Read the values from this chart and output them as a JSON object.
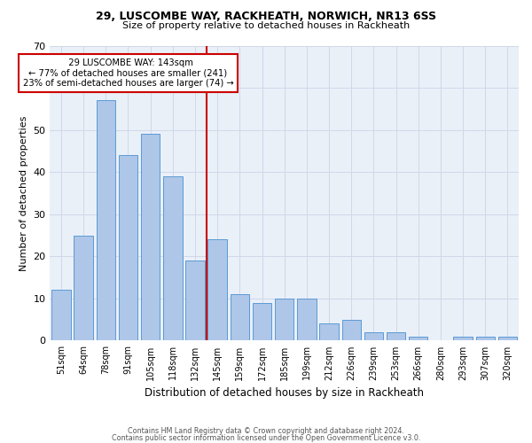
{
  "title": "29, LUSCOMBE WAY, RACKHEATH, NORWICH, NR13 6SS",
  "subtitle": "Size of property relative to detached houses in Rackheath",
  "xlabel": "Distribution of detached houses by size in Rackheath",
  "ylabel": "Number of detached properties",
  "categories": [
    "51sqm",
    "64sqm",
    "78sqm",
    "91sqm",
    "105sqm",
    "118sqm",
    "132sqm",
    "145sqm",
    "159sqm",
    "172sqm",
    "185sqm",
    "199sqm",
    "212sqm",
    "226sqm",
    "239sqm",
    "253sqm",
    "266sqm",
    "280sqm",
    "293sqm",
    "307sqm",
    "320sqm"
  ],
  "values": [
    12,
    25,
    57,
    44,
    49,
    39,
    19,
    24,
    11,
    9,
    10,
    10,
    4,
    5,
    2,
    2,
    1,
    0,
    1,
    1,
    1
  ],
  "bar_color": "#aec6e8",
  "bar_edge_color": "#5b9bd5",
  "annotation_line1": "  29 LUSCOMBE WAY: 143sqm",
  "annotation_line2": "← 77% of detached houses are smaller (241)",
  "annotation_line3": "23% of semi-detached houses are larger (74) →",
  "annotation_box_color": "#cc0000",
  "vline_color": "#cc0000",
  "ylim": [
    0,
    70
  ],
  "yticks": [
    0,
    10,
    20,
    30,
    40,
    50,
    60,
    70
  ],
  "grid_color": "#d0d8e8",
  "background_color": "#eaf0f8",
  "footer_line1": "Contains HM Land Registry data © Crown copyright and database right 2024.",
  "footer_line2": "Contains public sector information licensed under the Open Government Licence v3.0."
}
